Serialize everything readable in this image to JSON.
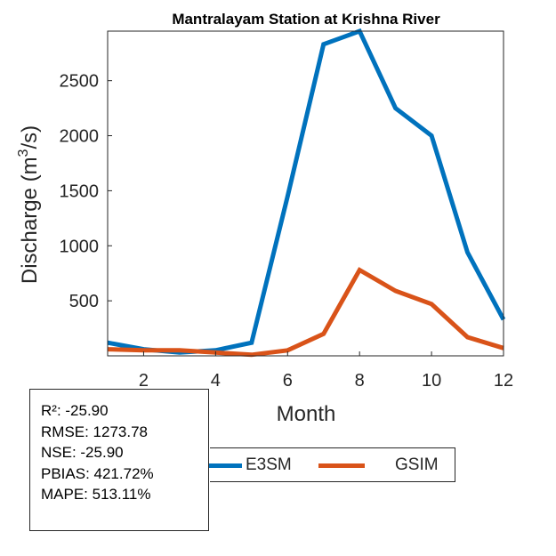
{
  "chart_data": {
    "type": "line",
    "title": "Mantralayam  Station at  Krishna  River",
    "xlabel": "Month",
    "ylabel_main": "Discharge (m",
    "ylabel_sup": "3",
    "ylabel_tail": "/s)",
    "xlim": [
      1,
      12
    ],
    "ylim": [
      0,
      2950
    ],
    "x": [
      1,
      2,
      3,
      4,
      5,
      6,
      7,
      8,
      9,
      10,
      11,
      12
    ],
    "xticks": [
      2,
      4,
      6,
      8,
      10,
      12
    ],
    "xtick_labels": [
      "2",
      "4",
      "6",
      "8",
      "10",
      "12"
    ],
    "yticks": [
      500,
      1000,
      1500,
      2000,
      2500
    ],
    "ytick_labels": [
      "500",
      "1000",
      "1500",
      "2000",
      "2500"
    ],
    "series": [
      {
        "name": "E3SM",
        "color": "#0072BD",
        "values": [
          120,
          60,
          30,
          50,
          120,
          1450,
          2830,
          2950,
          2250,
          2000,
          940,
          330
        ]
      },
      {
        "name": "GSIM",
        "color": "#D95319",
        "values": [
          60,
          50,
          50,
          30,
          10,
          50,
          200,
          780,
          590,
          470,
          170,
          70
        ]
      }
    ],
    "legend_position": "bottom"
  },
  "stats": {
    "r2": "R²: -25.90",
    "rmse": "RMSE: 1273.78",
    "nse": "NSE: -25.90",
    "pbias": "PBIAS: 421.72%",
    "mape": "MAPE: 513.11%"
  },
  "legend": {
    "e3sm_label": "E3SM",
    "e3sm_color": "#0072BD",
    "gsim_label": "GSIM",
    "gsim_color": "#D95319"
  }
}
